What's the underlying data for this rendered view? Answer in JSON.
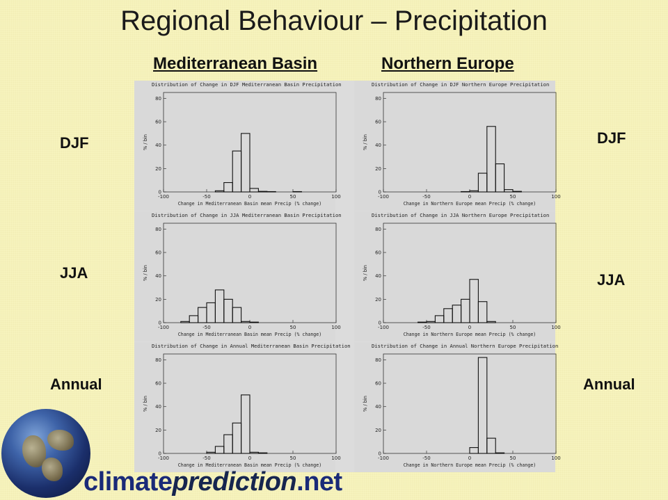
{
  "title": "Regional Behaviour – Precipitation",
  "columns": [
    "Mediterranean Basin",
    "Northern Europe"
  ],
  "row_labels": {
    "left": [
      "DJF",
      "JJA",
      "Annual"
    ],
    "right": [
      "DJF",
      "JJA",
      "Annual"
    ]
  },
  "logo": {
    "part1": "climate",
    "part2": "prediction",
    "part3": ".net"
  },
  "colors": {
    "background": "#f6f3bd",
    "panel": "#dcdcdc",
    "plot_bg": "#d9d9d9",
    "ink": "#111111",
    "logo_text": "#1a2a78"
  },
  "chart_data": [
    {
      "type": "bar",
      "title": "Distribution of Change in DJF Mediterranean Basin Precipitation",
      "xlabel": "Change in Mediterranean Basin mean Precip (% change)",
      "ylabel": "% / bin",
      "xlim": [
        -100,
        100
      ],
      "ylim": [
        0,
        85
      ],
      "xticks": [
        -100,
        -50,
        0,
        50,
        100
      ],
      "yticks": [
        0,
        20,
        40,
        60,
        80
      ],
      "bin_width": 10,
      "bin_starts": [
        -40,
        -30,
        -20,
        -10,
        0,
        10,
        20,
        50
      ],
      "values": [
        1,
        8,
        35,
        50,
        3,
        0.5,
        0.3,
        0.3
      ]
    },
    {
      "type": "bar",
      "title": "Distribution of Change in DJF Northern Europe Precipitation",
      "xlabel": "Change in Northern Europe mean Precip (% change)",
      "ylabel": "% / bin",
      "xlim": [
        -100,
        100
      ],
      "ylim": [
        0,
        85
      ],
      "xticks": [
        -100,
        -50,
        0,
        50,
        100
      ],
      "yticks": [
        0,
        20,
        40,
        60,
        80
      ],
      "bin_width": 10,
      "bin_starts": [
        -10,
        0,
        10,
        20,
        30,
        40,
        50
      ],
      "values": [
        0.3,
        1,
        16,
        56,
        24,
        2,
        0.5
      ]
    },
    {
      "type": "bar",
      "title": "Distribution of Change in JJA Mediterranean Basin Precipitation",
      "xlabel": "Change in Mediterranean Basin mean Precip (% change)",
      "ylabel": "% / bin",
      "xlim": [
        -100,
        100
      ],
      "ylim": [
        0,
        85
      ],
      "xticks": [
        -100,
        -50,
        0,
        50,
        100
      ],
      "yticks": [
        0,
        20,
        40,
        60,
        80
      ],
      "bin_width": 10,
      "bin_starts": [
        -80,
        -70,
        -60,
        -50,
        -40,
        -30,
        -20,
        -10,
        0
      ],
      "values": [
        1,
        6,
        13,
        17,
        28,
        20,
        13,
        1,
        0.5
      ]
    },
    {
      "type": "bar",
      "title": "Distribution of Change in JJA Northern Europe Precipitation",
      "xlabel": "Change in Northern Europe mean Precip (% change)",
      "ylabel": "% / bin",
      "xlim": [
        -100,
        100
      ],
      "ylim": [
        0,
        85
      ],
      "xticks": [
        -100,
        -50,
        0,
        50,
        100
      ],
      "yticks": [
        0,
        20,
        40,
        60,
        80
      ],
      "bin_width": 10,
      "bin_starts": [
        -60,
        -50,
        -40,
        -30,
        -20,
        -10,
        0,
        10,
        20
      ],
      "values": [
        0.5,
        1,
        6,
        12,
        15,
        20,
        37,
        18,
        1
      ]
    },
    {
      "type": "bar",
      "title": "Distribution of Change in Annual Mediterranean Basin Precipitation",
      "xlabel": "Change in Mediterranean Basin mean Precip (% change)",
      "ylabel": "% / bin",
      "xlim": [
        -100,
        100
      ],
      "ylim": [
        0,
        85
      ],
      "xticks": [
        -100,
        -50,
        0,
        50,
        100
      ],
      "yticks": [
        0,
        20,
        40,
        60,
        80
      ],
      "bin_width": 10,
      "bin_starts": [
        -50,
        -40,
        -30,
        -20,
        -10,
        0,
        10
      ],
      "values": [
        1,
        6,
        16,
        26,
        50,
        1,
        0.5
      ]
    },
    {
      "type": "bar",
      "title": "Distribution of Change in Annual Northern Europe Precipitation",
      "xlabel": "Change in Northern Europe mean Precip (% change)",
      "ylabel": "% / bin",
      "xlim": [
        -100,
        100
      ],
      "ylim": [
        0,
        85
      ],
      "xticks": [
        -100,
        -50,
        0,
        50,
        100
      ],
      "yticks": [
        0,
        20,
        40,
        60,
        80
      ],
      "bin_width": 10,
      "bin_starts": [
        0,
        10,
        20,
        30
      ],
      "values": [
        5,
        82,
        13,
        0.5
      ]
    }
  ]
}
